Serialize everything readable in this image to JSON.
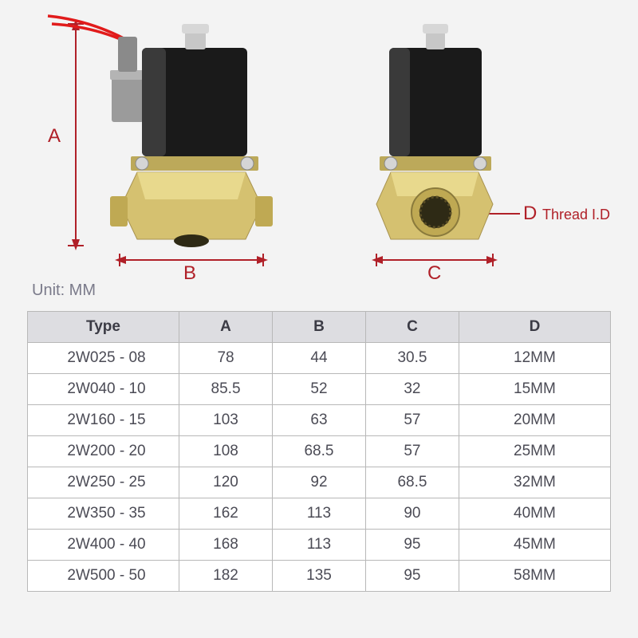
{
  "background_color": "#f3f3f3",
  "unit_label": "Unit: MM",
  "labels": {
    "A": "A",
    "B": "B",
    "C": "C",
    "D": "D",
    "thread_id": "Thread I.D"
  },
  "diagram": {
    "dim_color": "#b02028",
    "dim_font_size": 24,
    "thread_font_size": 18,
    "valve_body_color": "#d5c170",
    "valve_body_highlight": "#efe29a",
    "valve_body_shadow": "#a89350",
    "coil_color": "#1a1a1a",
    "coil_highlight": "#3a3a3a",
    "connector_gray": "#9b9b9b",
    "wire_color": "#e11b1b",
    "bolt_color": "#c7c7c7",
    "port_dark": "#2e2a15"
  },
  "spec_table": {
    "columns": [
      "Type",
      "A",
      "B",
      "C",
      "D"
    ],
    "column_widths_pct": [
      26,
      16,
      16,
      16,
      26
    ],
    "header_bg": "#dddde1",
    "border_color": "#b8b8b8",
    "cell_bg": "#ffffff",
    "font_size": 19,
    "text_color": "#4b4b55",
    "rows": [
      [
        "2W025 - 08",
        "78",
        "44",
        "30.5",
        "12MM"
      ],
      [
        "2W040 - 10",
        "85.5",
        "52",
        "32",
        "15MM"
      ],
      [
        "2W160 - 15",
        "103",
        "63",
        "57",
        "20MM"
      ],
      [
        "2W200 - 20",
        "108",
        "68.5",
        "57",
        "25MM"
      ],
      [
        "2W250 - 25",
        "120",
        "92",
        "68.5",
        "32MM"
      ],
      [
        "2W350 - 35",
        "162",
        "113",
        "90",
        "40MM"
      ],
      [
        "2W400 - 40",
        "168",
        "113",
        "95",
        "45MM"
      ],
      [
        "2W500 - 50",
        "182",
        "135",
        "95",
        "58MM"
      ]
    ]
  }
}
